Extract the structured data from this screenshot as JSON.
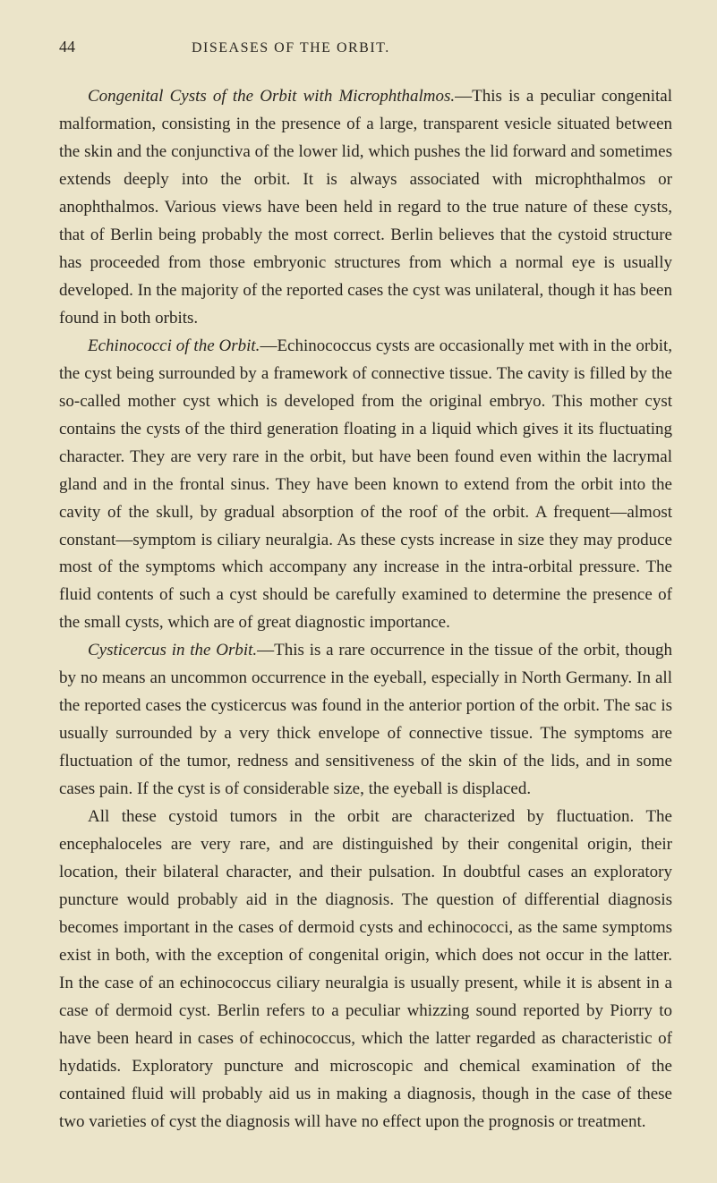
{
  "pageNumber": "44",
  "runningTitle": "DISEASES OF THE ORBIT.",
  "paragraphs": [
    {
      "lead": "Congenital Cysts of the Orbit with Microphthalmos.",
      "text": "—This is a peculiar congenital malformation, consisting in the presence of a large, transparent vesicle situated between the skin and the conjunctiva of the lower lid, which pushes the lid forward and sometimes extends deeply into the orbit. It is always associated with microphthalmos or anophthalmos. Various views have been held in regard to the true nature of these cysts, that of Berlin being probably the most correct. Berlin believes that the cystoid structure has proceeded from those embryonic structures from which a normal eye is usually developed. In the majority of the reported cases the cyst was unilateral, though it has been found in both orbits."
    },
    {
      "lead": "Echinococci of the Orbit.",
      "text": "—Echinococcus cysts are occasionally met with in the orbit, the cyst being surrounded by a framework of connective tissue. The cavity is filled by the so-called mother cyst which is developed from the original embryo. This mother cyst contains the cysts of the third generation floating in a liquid which gives it its fluctuating character. They are very rare in the orbit, but have been found even within the lacrymal gland and in the frontal sinus. They have been known to extend from the orbit into the cavity of the skull, by gradual absorption of the roof of the orbit. A frequent—almost constant—symptom is ciliary neuralgia. As these cysts increase in size they may produce most of the symptoms which accompany any increase in the intra-orbital pressure. The fluid contents of such a cyst should be carefully examined to determine the presence of the small cysts, which are of great diagnostic importance."
    },
    {
      "lead": "Cysticercus in the Orbit.",
      "text": "—This is a rare occurrence in the tissue of the orbit, though by no means an uncommon occurrence in the eyeball, especially in North Germany. In all the reported cases the cysticercus was found in the anterior portion of the orbit. The sac is usually surrounded by a very thick envelope of connective tissue. The symptoms are fluctuation of the tumor, redness and sensitiveness of the skin of the lids, and in some cases pain. If the cyst is of considerable size, the eyeball is displaced."
    },
    {
      "lead": "",
      "text": "All these cystoid tumors in the orbit are characterized by fluctuation. The encephaloceles are very rare, and are distinguished by their congenital origin, their location, their bilateral character, and their pulsation. In doubtful cases an exploratory puncture would probably aid in the diagnosis. The question of differential diagnosis becomes important in the cases of dermoid cysts and echinococci, as the same symptoms exist in both, with the exception of congenital origin, which does not occur in the latter. In the case of an echinococcus ciliary neuralgia is usually present, while it is absent in a case of dermoid cyst. Berlin refers to a peculiar whizzing sound reported by Piorry to have been heard in cases of echinococcus, which the latter regarded as characteristic of hydatids. Exploratory puncture and microscopic and chemical examination of the contained fluid will probably aid us in making a diagnosis, though in the case of these two varieties of cyst the diagnosis will have no effect upon the prognosis or treatment."
    }
  ]
}
